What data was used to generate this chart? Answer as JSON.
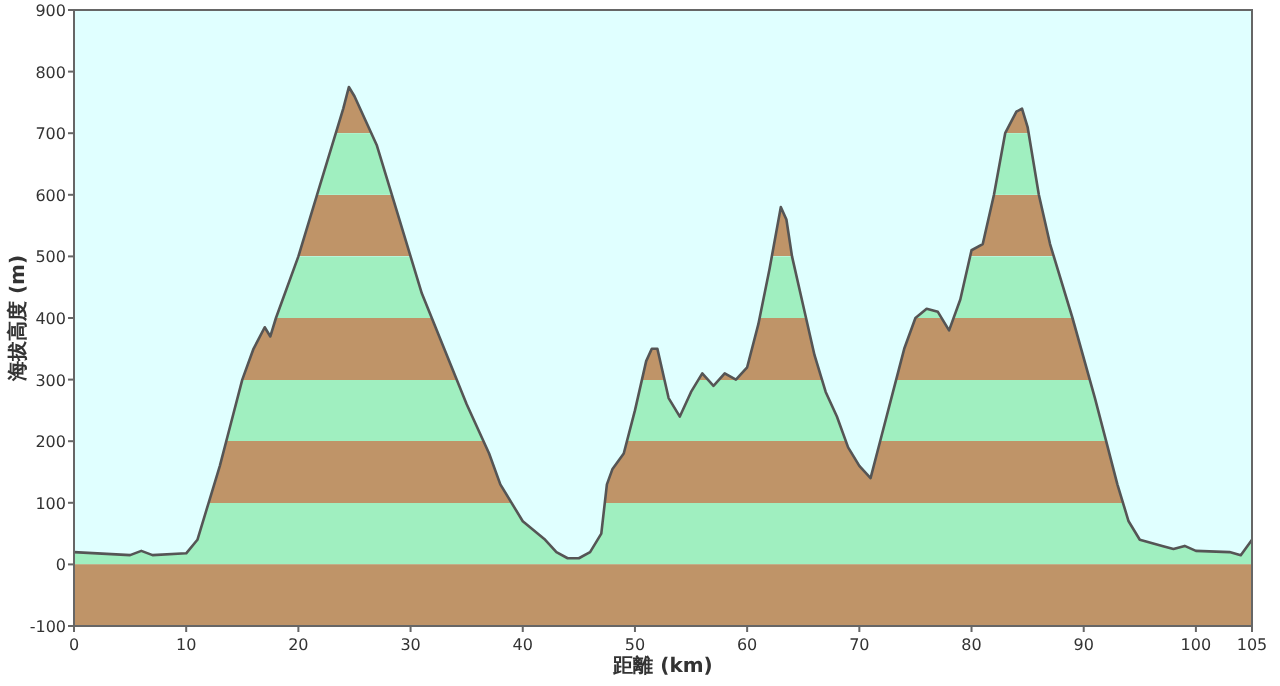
{
  "chart_data": {
    "type": "area",
    "xlabel": "距離 (km)",
    "ylabel": "海拔高度 (m)",
    "xlim": [
      0,
      105
    ],
    "ylim": [
      -100,
      900
    ],
    "xticks": [
      0,
      10,
      20,
      30,
      40,
      50,
      60,
      70,
      80,
      90,
      100,
      105
    ],
    "yticks": [
      -100,
      0,
      100,
      200,
      300,
      400,
      500,
      600,
      700,
      800,
      900
    ],
    "x": [
      0,
      5,
      6,
      7,
      10,
      11,
      12,
      13,
      14,
      15,
      16,
      17,
      17.5,
      18,
      20,
      22,
      24,
      24.5,
      25,
      27,
      29,
      31,
      33,
      35,
      37,
      38,
      40,
      42,
      43,
      44,
      45,
      46,
      47,
      47.5,
      48,
      49,
      50,
      51,
      51.5,
      52,
      53,
      54,
      55,
      56,
      57,
      58,
      59,
      60,
      61,
      62,
      63,
      63.5,
      64,
      65,
      66,
      67,
      68,
      69,
      70,
      71,
      72,
      73,
      74,
      75,
      76,
      77,
      78,
      79,
      80,
      81,
      82,
      83,
      84,
      84.5,
      85,
      86,
      87,
      89,
      91,
      92,
      93,
      94,
      95,
      97,
      98,
      99,
      100,
      103,
      104,
      105
    ],
    "series": [
      {
        "color": "#bf9468",
        "values": [
          20,
          15,
          22,
          15,
          18,
          40,
          100,
          160,
          230,
          300,
          350,
          385,
          370,
          400,
          500,
          620,
          740,
          775,
          760,
          680,
          560,
          440,
          350,
          260,
          180,
          130,
          70,
          40,
          20,
          10,
          10,
          20,
          50,
          130,
          155,
          180,
          250,
          330,
          350,
          350,
          270,
          240,
          280,
          310,
          290,
          310,
          300,
          320,
          390,
          480,
          580,
          560,
          500,
          420,
          340,
          280,
          240,
          190,
          160,
          140,
          210,
          280,
          350,
          400,
          415,
          410,
          380,
          430,
          510,
          520,
          600,
          700,
          735,
          740,
          710,
          600,
          520,
          400,
          270,
          200,
          130,
          70,
          40,
          30,
          25,
          30,
          22,
          20,
          15,
          40
        ]
      }
    ],
    "bands": [
      {
        "axis": "y",
        "from": -100,
        "to": 0,
        "color": "#bf9468"
      },
      {
        "axis": "y",
        "from": 0,
        "to": 100,
        "color": "#a0efc0"
      },
      {
        "axis": "y",
        "from": 200,
        "to": 300,
        "color": "#a0efc0"
      },
      {
        "axis": "y",
        "from": 400,
        "to": 500,
        "color": "#a0efc0"
      },
      {
        "axis": "y",
        "from": 600,
        "to": 700,
        "color": "#a0efc0"
      }
    ]
  }
}
